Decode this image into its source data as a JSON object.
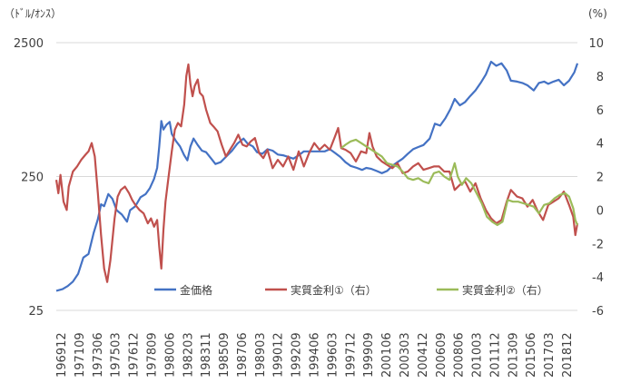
{
  "chart_data": {
    "type": "line",
    "left_axis_unit": "（ﾄﾞﾙ/ｵﾝｽ）",
    "right_axis_unit": "(%)",
    "left_axis": {
      "scale": "log",
      "ylim": [
        25,
        2500
      ],
      "ticks": [
        "2500",
        "250",
        "25"
      ]
    },
    "right_axis": {
      "scale": "linear",
      "ylim": [
        -6,
        10
      ],
      "ticks": [
        "10",
        "8",
        "6",
        "4",
        "2",
        "0",
        "-2",
        "-4",
        "-6"
      ]
    },
    "x_tick_labels": [
      "196912",
      "197109",
      "197306",
      "197503",
      "197612",
      "197809",
      "198006",
      "198203",
      "198311",
      "198509",
      "198706",
      "198903",
      "199012",
      "199209",
      "199406",
      "199603",
      "199712",
      "199909",
      "200106",
      "200303",
      "200412",
      "200609",
      "200806",
      "201003",
      "201112",
      "201309",
      "201506",
      "201703",
      "201812"
    ],
    "x_range": [
      1969.9,
      2020.0
    ],
    "legend_position": "bottom",
    "series": [
      {
        "name": "金価格",
        "axis": "left",
        "color": "#4472C4",
        "points": [
          [
            1969.9,
            35
          ],
          [
            1970.5,
            36
          ],
          [
            1971.0,
            38
          ],
          [
            1971.5,
            41
          ],
          [
            1972.0,
            47
          ],
          [
            1972.5,
            62
          ],
          [
            1973.0,
            66
          ],
          [
            1973.5,
            95
          ],
          [
            1973.9,
            120
          ],
          [
            1974.2,
            155
          ],
          [
            1974.5,
            150
          ],
          [
            1974.9,
            185
          ],
          [
            1975.3,
            170
          ],
          [
            1975.7,
            140
          ],
          [
            1976.2,
            130
          ],
          [
            1976.7,
            115
          ],
          [
            1977.0,
            140
          ],
          [
            1977.5,
            150
          ],
          [
            1978.0,
            175
          ],
          [
            1978.5,
            185
          ],
          [
            1978.9,
            205
          ],
          [
            1979.3,
            240
          ],
          [
            1979.6,
            290
          ],
          [
            1979.8,
            420
          ],
          [
            1980.0,
            650
          ],
          [
            1980.2,
            560
          ],
          [
            1980.5,
            610
          ],
          [
            1980.8,
            640
          ],
          [
            1981.0,
            520
          ],
          [
            1981.4,
            460
          ],
          [
            1981.8,
            420
          ],
          [
            1982.2,
            360
          ],
          [
            1982.5,
            330
          ],
          [
            1982.8,
            420
          ],
          [
            1983.1,
            480
          ],
          [
            1983.5,
            430
          ],
          [
            1983.9,
            390
          ],
          [
            1984.3,
            380
          ],
          [
            1984.8,
            340
          ],
          [
            1985.2,
            310
          ],
          [
            1985.7,
            320
          ],
          [
            1986.2,
            350
          ],
          [
            1986.8,
            390
          ],
          [
            1987.3,
            440
          ],
          [
            1987.9,
            480
          ],
          [
            1988.3,
            440
          ],
          [
            1988.8,
            420
          ],
          [
            1989.2,
            380
          ],
          [
            1989.7,
            370
          ],
          [
            1990.2,
            400
          ],
          [
            1990.7,
            390
          ],
          [
            1991.2,
            365
          ],
          [
            1991.7,
            360
          ],
          [
            1992.2,
            350
          ],
          [
            1992.7,
            340
          ],
          [
            1993.2,
            360
          ],
          [
            1993.7,
            385
          ],
          [
            1994.2,
            385
          ],
          [
            1994.7,
            385
          ],
          [
            1995.2,
            385
          ],
          [
            1995.7,
            385
          ],
          [
            1996.2,
            400
          ],
          [
            1996.7,
            375
          ],
          [
            1997.2,
            350
          ],
          [
            1997.7,
            320
          ],
          [
            1998.2,
            300
          ],
          [
            1998.8,
            290
          ],
          [
            1999.3,
            280
          ],
          [
            1999.7,
            290
          ],
          [
            2000.2,
            285
          ],
          [
            2000.7,
            275
          ],
          [
            2001.2,
            265
          ],
          [
            2001.7,
            275
          ],
          [
            2002.2,
            300
          ],
          [
            2002.7,
            320
          ],
          [
            2003.2,
            340
          ],
          [
            2003.7,
            370
          ],
          [
            2004.2,
            400
          ],
          [
            2004.7,
            415
          ],
          [
            2005.2,
            430
          ],
          [
            2005.8,
            480
          ],
          [
            2006.3,
            620
          ],
          [
            2006.8,
            600
          ],
          [
            2007.3,
            680
          ],
          [
            2007.8,
            800
          ],
          [
            2008.2,
            950
          ],
          [
            2008.7,
            850
          ],
          [
            2009.2,
            900
          ],
          [
            2009.7,
            1000
          ],
          [
            2010.2,
            1100
          ],
          [
            2010.7,
            1250
          ],
          [
            2011.2,
            1450
          ],
          [
            2011.7,
            1800
          ],
          [
            2012.2,
            1680
          ],
          [
            2012.7,
            1750
          ],
          [
            2013.2,
            1550
          ],
          [
            2013.6,
            1300
          ],
          [
            2014.2,
            1280
          ],
          [
            2014.7,
            1250
          ],
          [
            2015.2,
            1200
          ],
          [
            2015.8,
            1100
          ],
          [
            2016.3,
            1250
          ],
          [
            2016.8,
            1280
          ],
          [
            2017.2,
            1230
          ],
          [
            2017.7,
            1280
          ],
          [
            2018.2,
            1320
          ],
          [
            2018.7,
            1200
          ],
          [
            2019.2,
            1300
          ],
          [
            2019.7,
            1500
          ],
          [
            2020.0,
            1750
          ]
        ]
      },
      {
        "name": "実質金利①（右）",
        "axis": "right",
        "color": "#C0504D",
        "points": [
          [
            1969.9,
            1.8
          ],
          [
            1970.1,
            1.0
          ],
          [
            1970.3,
            2.1
          ],
          [
            1970.6,
            0.5
          ],
          [
            1970.9,
            0.0
          ],
          [
            1971.1,
            1.4
          ],
          [
            1971.5,
            2.3
          ],
          [
            1971.9,
            2.6
          ],
          [
            1972.3,
            3.0
          ],
          [
            1972.7,
            3.3
          ],
          [
            1973.0,
            3.5
          ],
          [
            1973.3,
            4.0
          ],
          [
            1973.6,
            3.2
          ],
          [
            1973.9,
            1.0
          ],
          [
            1974.2,
            -1.5
          ],
          [
            1974.5,
            -3.5
          ],
          [
            1974.8,
            -4.3
          ],
          [
            1975.1,
            -3.0
          ],
          [
            1975.5,
            -0.5
          ],
          [
            1975.8,
            0.8
          ],
          [
            1976.1,
            1.2
          ],
          [
            1976.5,
            1.4
          ],
          [
            1976.9,
            1.0
          ],
          [
            1977.2,
            0.6
          ],
          [
            1977.5,
            0.3
          ],
          [
            1977.9,
            0.0
          ],
          [
            1978.3,
            -0.2
          ],
          [
            1978.7,
            -0.8
          ],
          [
            1979.0,
            -0.5
          ],
          [
            1979.3,
            -1.0
          ],
          [
            1979.6,
            -0.6
          ],
          [
            1979.8,
            -2.2
          ],
          [
            1980.0,
            -3.5
          ],
          [
            1980.2,
            -1.2
          ],
          [
            1980.4,
            0.5
          ],
          [
            1980.7,
            2.0
          ],
          [
            1981.0,
            3.5
          ],
          [
            1981.3,
            4.8
          ],
          [
            1981.6,
            5.2
          ],
          [
            1981.9,
            5.0
          ],
          [
            1982.2,
            6.3
          ],
          [
            1982.4,
            8.0
          ],
          [
            1982.6,
            8.7
          ],
          [
            1982.8,
            7.5
          ],
          [
            1983.0,
            6.8
          ],
          [
            1983.2,
            7.4
          ],
          [
            1983.5,
            7.8
          ],
          [
            1983.7,
            7.0
          ],
          [
            1984.0,
            6.8
          ],
          [
            1984.3,
            6.0
          ],
          [
            1984.7,
            5.2
          ],
          [
            1985.0,
            5.0
          ],
          [
            1985.4,
            4.7
          ],
          [
            1985.8,
            3.9
          ],
          [
            1986.2,
            3.2
          ],
          [
            1986.6,
            3.6
          ],
          [
            1987.0,
            4.0
          ],
          [
            1987.4,
            4.5
          ],
          [
            1987.8,
            3.9
          ],
          [
            1988.2,
            3.8
          ],
          [
            1988.6,
            4.1
          ],
          [
            1989.0,
            4.3
          ],
          [
            1989.4,
            3.4
          ],
          [
            1989.8,
            3.1
          ],
          [
            1990.2,
            3.6
          ],
          [
            1990.7,
            2.5
          ],
          [
            1991.2,
            3.0
          ],
          [
            1991.7,
            2.6
          ],
          [
            1992.2,
            3.2
          ],
          [
            1992.7,
            2.4
          ],
          [
            1993.2,
            3.5
          ],
          [
            1993.7,
            2.6
          ],
          [
            1994.2,
            3.4
          ],
          [
            1994.7,
            4.0
          ],
          [
            1995.2,
            3.6
          ],
          [
            1995.7,
            3.9
          ],
          [
            1996.2,
            3.6
          ],
          [
            1996.7,
            4.4
          ],
          [
            1997.0,
            4.9
          ],
          [
            1997.3,
            3.7
          ],
          [
            1997.7,
            3.6
          ],
          [
            1998.2,
            3.4
          ],
          [
            1998.7,
            2.9
          ],
          [
            1999.2,
            3.5
          ],
          [
            1999.7,
            3.4
          ],
          [
            2000.0,
            4.6
          ],
          [
            2000.3,
            3.8
          ],
          [
            2000.7,
            3.2
          ],
          [
            2001.2,
            2.9
          ],
          [
            2001.7,
            2.7
          ],
          [
            2002.2,
            2.5
          ],
          [
            2002.7,
            2.8
          ],
          [
            2003.2,
            2.2
          ],
          [
            2003.7,
            2.3
          ],
          [
            2004.2,
            2.6
          ],
          [
            2004.7,
            2.8
          ],
          [
            2005.2,
            2.4
          ],
          [
            2005.7,
            2.5
          ],
          [
            2006.2,
            2.6
          ],
          [
            2006.7,
            2.6
          ],
          [
            2007.2,
            2.3
          ],
          [
            2007.7,
            2.3
          ],
          [
            2008.2,
            1.2
          ],
          [
            2008.7,
            1.5
          ],
          [
            2009.2,
            1.7
          ],
          [
            2009.7,
            1.1
          ],
          [
            2010.2,
            1.6
          ],
          [
            2010.7,
            0.7
          ],
          [
            2011.2,
            0.0
          ],
          [
            2011.7,
            -0.5
          ],
          [
            2012.2,
            -0.8
          ],
          [
            2012.7,
            -0.6
          ],
          [
            2013.2,
            0.5
          ],
          [
            2013.6,
            1.2
          ],
          [
            2014.2,
            0.8
          ],
          [
            2014.7,
            0.7
          ],
          [
            2015.2,
            0.2
          ],
          [
            2015.7,
            0.6
          ],
          [
            2016.2,
            -0.1
          ],
          [
            2016.7,
            -0.6
          ],
          [
            2017.2,
            0.3
          ],
          [
            2017.7,
            0.5
          ],
          [
            2018.2,
            0.7
          ],
          [
            2018.7,
            1.1
          ],
          [
            2019.2,
            0.3
          ],
          [
            2019.6,
            -0.4
          ],
          [
            2019.8,
            -1.5
          ],
          [
            2020.0,
            -0.8
          ]
        ]
      },
      {
        "name": "実質金利②（右）",
        "axis": "right",
        "color": "#9BBB59",
        "points": [
          [
            1997.3,
            3.7
          ],
          [
            1997.7,
            3.9
          ],
          [
            1998.2,
            4.1
          ],
          [
            1998.7,
            4.2
          ],
          [
            1999.2,
            4.0
          ],
          [
            1999.7,
            3.8
          ],
          [
            2000.2,
            3.6
          ],
          [
            2000.7,
            3.4
          ],
          [
            2001.2,
            3.2
          ],
          [
            2001.7,
            2.8
          ],
          [
            2002.2,
            2.7
          ],
          [
            2002.7,
            2.6
          ],
          [
            2003.2,
            2.3
          ],
          [
            2003.7,
            1.9
          ],
          [
            2004.2,
            1.8
          ],
          [
            2004.7,
            1.9
          ],
          [
            2005.2,
            1.7
          ],
          [
            2005.7,
            1.6
          ],
          [
            2006.2,
            2.2
          ],
          [
            2006.7,
            2.3
          ],
          [
            2007.2,
            2.0
          ],
          [
            2007.7,
            1.8
          ],
          [
            2008.2,
            2.8
          ],
          [
            2008.5,
            2.0
          ],
          [
            2008.9,
            1.5
          ],
          [
            2009.3,
            1.9
          ],
          [
            2009.8,
            1.6
          ],
          [
            2010.3,
            1.0
          ],
          [
            2010.8,
            0.4
          ],
          [
            2011.3,
            -0.4
          ],
          [
            2011.8,
            -0.7
          ],
          [
            2012.3,
            -0.9
          ],
          [
            2012.8,
            -0.7
          ],
          [
            2013.3,
            0.6
          ],
          [
            2013.8,
            0.5
          ],
          [
            2014.3,
            0.5
          ],
          [
            2014.8,
            0.4
          ],
          [
            2015.3,
            0.3
          ],
          [
            2015.8,
            0.2
          ],
          [
            2016.3,
            -0.2
          ],
          [
            2016.8,
            0.3
          ],
          [
            2017.3,
            0.4
          ],
          [
            2017.8,
            0.7
          ],
          [
            2018.3,
            0.9
          ],
          [
            2018.8,
            1.0
          ],
          [
            2019.2,
            0.8
          ],
          [
            2019.6,
            0.1
          ],
          [
            2019.8,
            -0.6
          ],
          [
            2020.0,
            -0.9
          ]
        ]
      }
    ]
  }
}
